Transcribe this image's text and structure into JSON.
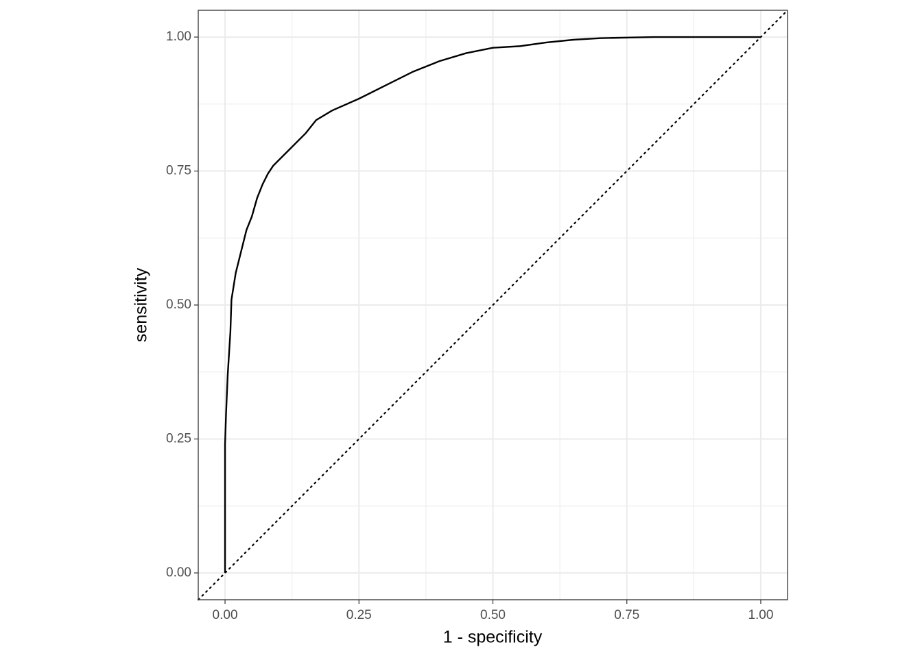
{
  "chart_data": {
    "type": "line",
    "xlabel": "1 - specificity",
    "ylabel": "sensitivity",
    "x": [
      0,
      0,
      0.002,
      0.005,
      0.01,
      0.012,
      0.02,
      0.03,
      0.04,
      0.05,
      0.06,
      0.07,
      0.08,
      0.09,
      0.1,
      0.12,
      0.15,
      0.17,
      0.2,
      0.25,
      0.3,
      0.35,
      0.4,
      0.45,
      0.5,
      0.55,
      0.6,
      0.65,
      0.7,
      0.8,
      1.0
    ],
    "series": [
      {
        "color": "#000000",
        "values": [
          0,
          0.24,
          0.3,
          0.37,
          0.45,
          0.51,
          0.56,
          0.6,
          0.64,
          0.665,
          0.7,
          0.725,
          0.745,
          0.76,
          0.77,
          0.79,
          0.82,
          0.845,
          0.863,
          0.885,
          0.91,
          0.935,
          0.955,
          0.97,
          0.98,
          0.983,
          0.99,
          0.995,
          0.998,
          1.0,
          1.0
        ]
      }
    ],
    "xlim": [
      -0.05,
      1.05
    ],
    "ylim": [
      -0.05,
      1.05
    ],
    "xticks": [
      {
        "value": 0,
        "label": "0.00"
      },
      {
        "value": 0.25,
        "label": "0.25"
      },
      {
        "value": 0.5,
        "label": "0.50"
      },
      {
        "value": 0.75,
        "label": "0.75"
      },
      {
        "value": 1,
        "label": "1.00"
      }
    ],
    "yticks": [
      {
        "value": 0,
        "label": "0.00"
      },
      {
        "value": 0.25,
        "label": "0.25"
      },
      {
        "value": 0.5,
        "label": "0.50"
      },
      {
        "value": 0.75,
        "label": "0.75"
      },
      {
        "value": 1,
        "label": "1.00"
      }
    ],
    "grid": true
  }
}
